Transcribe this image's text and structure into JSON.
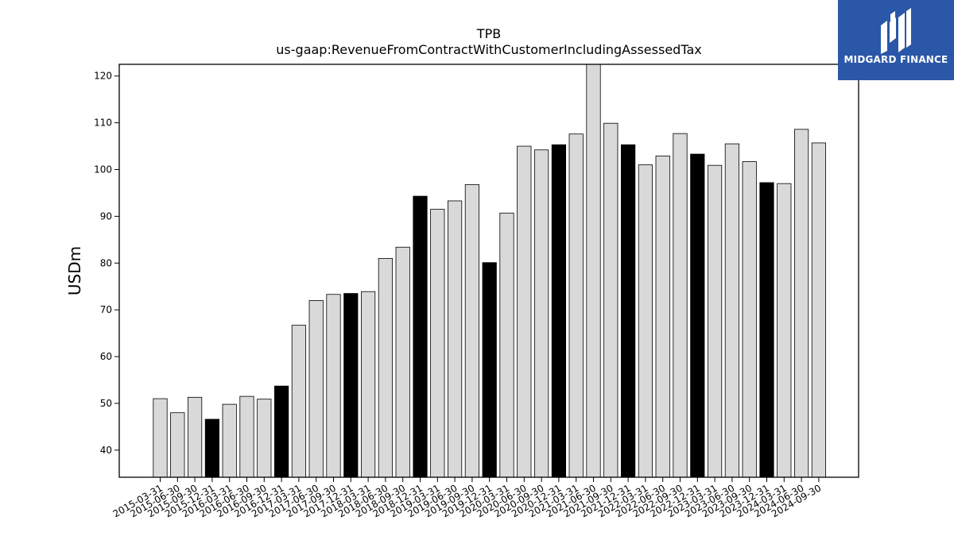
{
  "chart_data": {
    "type": "bar",
    "title": "TPB",
    "subtitle": "us-gaap:RevenueFromContractWithCustomerIncludingAssessedTax",
    "xlabel": "",
    "ylabel": "USDm",
    "ylim": [
      34.2,
      122.5
    ],
    "yticks": [
      40,
      50,
      60,
      70,
      80,
      90,
      100,
      110,
      120
    ],
    "grid": false,
    "colors": {
      "quarter": "#d9d9d9",
      "year_end": "#000000",
      "edge": "#000000"
    },
    "categories": [
      "2015-03-31",
      "2015-06-30",
      "2015-09-30",
      "2015-12-31",
      "2016-03-31",
      "2016-06-30",
      "2016-09-30",
      "2016-12-31",
      "2017-03-31",
      "2017-06-30",
      "2017-09-30",
      "2017-12-31",
      "2018-03-31",
      "2018-06-30",
      "2018-09-30",
      "2018-12-31",
      "2019-03-31",
      "2019-06-30",
      "2019-09-30",
      "2019-12-31",
      "2020-03-31",
      "2020-06-30",
      "2020-09-30",
      "2020-12-31",
      "2021-03-31",
      "2021-06-30",
      "2021-09-30",
      "2021-12-31",
      "2022-03-31",
      "2022-06-30",
      "2022-09-30",
      "2022-12-31",
      "2023-03-31",
      "2023-06-30",
      "2023-09-30",
      "2023-12-31",
      "2024-03-31",
      "2024-06-30",
      "2024-09-30"
    ],
    "values": [
      51.0,
      48.0,
      51.3,
      46.6,
      49.8,
      51.5,
      50.9,
      53.7,
      66.7,
      72.0,
      73.3,
      73.5,
      73.9,
      81.0,
      83.4,
      94.3,
      91.5,
      93.3,
      96.8,
      80.1,
      90.7,
      105.0,
      104.2,
      105.3,
      107.6,
      123.5,
      109.9,
      105.3,
      101.0,
      102.9,
      107.7,
      103.3,
      100.9,
      105.5,
      101.7,
      97.2,
      97.0,
      108.6,
      105.7
    ],
    "highlight": [
      false,
      false,
      false,
      true,
      false,
      false,
      false,
      true,
      false,
      false,
      false,
      true,
      false,
      false,
      false,
      true,
      false,
      false,
      false,
      true,
      false,
      false,
      false,
      true,
      false,
      false,
      false,
      true,
      false,
      false,
      false,
      true,
      false,
      false,
      false,
      true,
      false,
      false,
      false
    ]
  },
  "logo": {
    "text": "MIDGARD FINANCE",
    "color": "#2b57a8"
  }
}
